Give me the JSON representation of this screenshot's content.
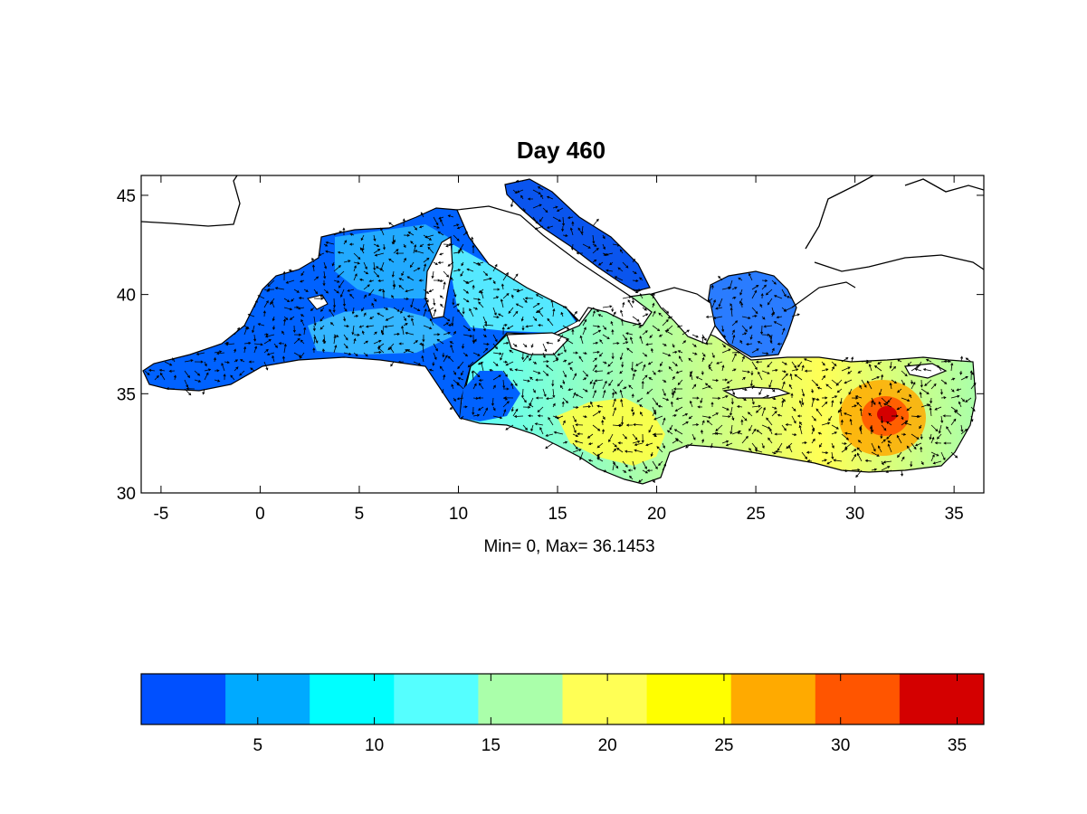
{
  "title": "Day  460",
  "stats_label": "Min= 0,  Max= 36.1453",
  "map": {
    "x_ticks": [
      "-5",
      "0",
      "5",
      "10",
      "15",
      "20",
      "25",
      "30",
      "35"
    ],
    "x_tick_values": [
      -5,
      0,
      5,
      10,
      15,
      20,
      25,
      30,
      35
    ],
    "y_ticks": [
      "30",
      "35",
      "40",
      "45"
    ],
    "y_tick_values": [
      30,
      35,
      40,
      45
    ],
    "lon_range": [
      -6,
      36.5
    ],
    "lat_range": [
      30,
      46
    ]
  },
  "colorbar": {
    "colors": [
      "#0050ff",
      "#00aaff",
      "#00ffff",
      "#55ffff",
      "#aaffaa",
      "#ffff55",
      "#ffff00",
      "#ffaa00",
      "#ff5500",
      "#d40000"
    ],
    "ticks": [
      "5",
      "10",
      "15",
      "20",
      "25",
      "30",
      "35"
    ],
    "tick_values": [
      5,
      10,
      15,
      20,
      25,
      30,
      35
    ],
    "range": [
      0,
      36.1453
    ]
  }
}
